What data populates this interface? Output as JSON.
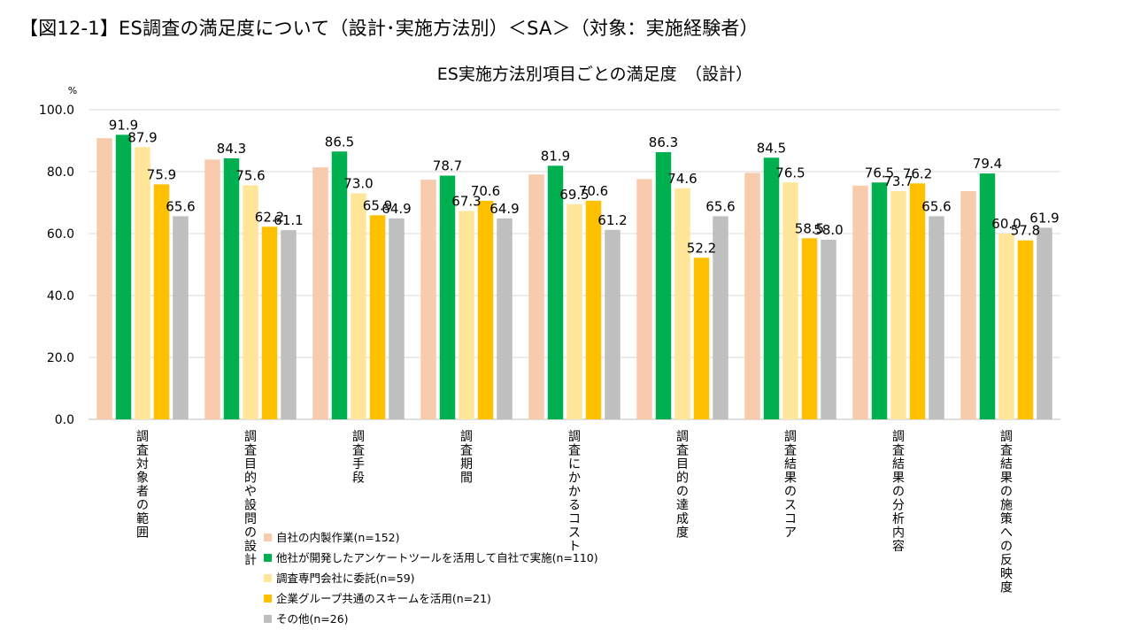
{
  "figure": {
    "title": "【図12-1】ES調査の満足度について（設計･実施方法別）＜SA＞（対象：実施経験者）"
  },
  "chart_data": {
    "type": "bar",
    "title": "ES実施方法別項目ごとの満足度　（設計）",
    "ylabel": "%",
    "xlabel": "",
    "ylim": [
      0,
      100
    ],
    "yticks": [
      "0.0",
      "20.0",
      "40.0",
      "60.0",
      "80.0",
      "100.0"
    ],
    "grid": true,
    "legend_position": "bottom-center",
    "categories": [
      "調査対象者の範囲",
      "調査目的や設問の設計",
      "調査手段",
      "調査期間",
      "調査にかかるコスト",
      "調査目的の達成度",
      "調査結果のスコア",
      "調査結果の分析内容",
      "調査結果の施策への反映度"
    ],
    "series": [
      {
        "name": "自社の内製作業(n=152)",
        "color": "#F8CBAD",
        "values": [
          90.8,
          83.9,
          81.4,
          77.4,
          79.1,
          77.6,
          79.6,
          75.5,
          73.7
        ],
        "labels": [
          null,
          null,
          null,
          null,
          null,
          null,
          null,
          null,
          null
        ]
      },
      {
        "name": "他社が開発したアンケートツールを活用して自社で実施(n=110)",
        "color": "#00B050",
        "values": [
          91.9,
          84.3,
          86.5,
          78.7,
          81.9,
          86.3,
          84.5,
          76.5,
          79.4
        ],
        "labels": [
          "91.9",
          "84.3",
          "86.5",
          "78.7",
          "81.9",
          "86.3",
          "84.5",
          "76.5",
          "79.4"
        ]
      },
      {
        "name": "調査専門会社に委託(n=59)",
        "color": "#FFE699",
        "values": [
          87.9,
          75.6,
          73.0,
          67.3,
          69.5,
          74.6,
          76.5,
          73.7,
          60.0
        ],
        "labels": [
          "87.9",
          "75.6",
          "73.0",
          "67.3",
          "69.5",
          "74.6",
          "76.5",
          "73.7",
          "60.0"
        ]
      },
      {
        "name": "企業グループ共通のスキームを活用(n=21)",
        "color": "#FFC000",
        "values": [
          75.9,
          62.2,
          65.9,
          70.6,
          70.6,
          52.2,
          58.5,
          76.2,
          57.8
        ],
        "labels": [
          "75.9",
          "62.2",
          "65.9",
          "70.6",
          "70.6",
          "52.2",
          "58.5",
          "76.2",
          "57.8"
        ]
      },
      {
        "name": "その他(n=26)",
        "color": "#BFBFBF",
        "values": [
          65.6,
          61.1,
          64.9,
          64.9,
          61.2,
          65.6,
          58.0,
          65.6,
          61.9
        ],
        "labels": [
          "65.6",
          "61.1",
          "64.9",
          "64.9",
          "61.2",
          "65.6",
          "58.0",
          "65.6",
          "61.9"
        ]
      }
    ]
  }
}
